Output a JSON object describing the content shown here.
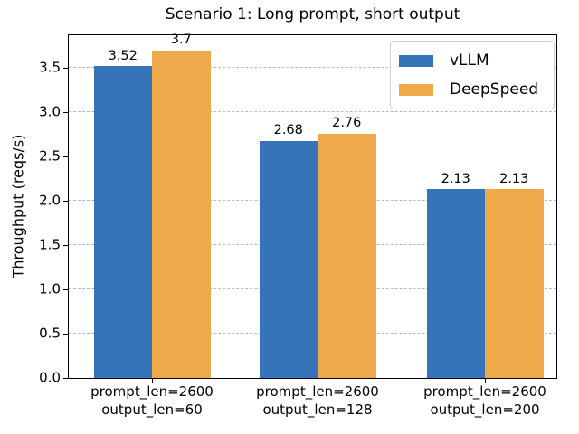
{
  "chart_data": {
    "type": "bar",
    "title": "Scenario 1: Long prompt, short output",
    "xlabel": "",
    "ylabel": "Throughput (reqs/s)",
    "categories": [
      {
        "line1": "prompt_len=2600",
        "line2": "output_len=60"
      },
      {
        "line1": "prompt_len=2600",
        "line2": "output_len=128"
      },
      {
        "line1": "prompt_len=2600",
        "line2": "output_len=200"
      }
    ],
    "series": [
      {
        "name": "vLLM",
        "color": "#3674B9",
        "values": [
          3.52,
          2.68,
          2.13
        ],
        "value_labels": [
          "3.52",
          "2.68",
          "2.13"
        ]
      },
      {
        "name": "DeepSpeed",
        "color": "#EDA94A",
        "values": [
          3.7,
          2.76,
          2.13
        ],
        "value_labels": [
          "3.7",
          "2.76",
          "2.13"
        ]
      }
    ],
    "yticks": [
      "0.0",
      "0.5",
      "1.0",
      "1.5",
      "2.0",
      "2.5",
      "3.0",
      "3.5"
    ],
    "ylim": [
      0,
      3.87
    ],
    "grid": "horizontal-dashed",
    "grid_color": "#b9b9b9",
    "legend_position": "upper-right"
  }
}
